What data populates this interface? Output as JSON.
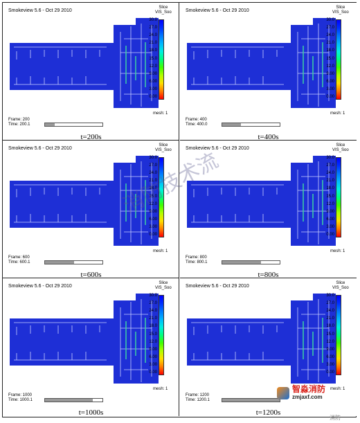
{
  "header_text": "Smokeview 5.6 - Oct 29 2010",
  "legend": {
    "title_line1": "Slice",
    "title_line2": "VIS_Soo",
    "levels": [
      "30.0",
      "27.0",
      "24.0",
      "21.0",
      "18.0",
      "15.0",
      "12.0",
      "9.00",
      "6.00",
      "3.00",
      "0.00"
    ],
    "colors": [
      "#0000ff",
      "#0030ff",
      "#0078ff",
      "#00b8ff",
      "#00f0e0",
      "#00ff80",
      "#40ff00",
      "#b0ff00",
      "#ffe000",
      "#ff8000",
      "#ff0000"
    ]
  },
  "mesh_label": "mesh: 1",
  "panels": [
    {
      "frame": "Frame: 200",
      "time": "Time: 200.1",
      "caption": "t=200s",
      "progress": 0.17
    },
    {
      "frame": "Frame: 400",
      "time": "Time: 400.0",
      "caption": "t=400s",
      "progress": 0.33
    },
    {
      "frame": "Frame: 600",
      "time": "Time: 600.1",
      "caption": "t=600s",
      "progress": 0.5
    },
    {
      "frame": "Frame: 800",
      "time": "Time: 800.1",
      "caption": "t=800s",
      "progress": 0.67
    },
    {
      "frame": "Frame: 1000",
      "time": "Time: 1000.1",
      "caption": "t=1000s",
      "progress": 0.83
    },
    {
      "frame": "Frame: 1200",
      "time": "Time: 1200.1",
      "caption": "t=1200s",
      "progress": 1.0
    }
  ],
  "watermark": "消防技术流",
  "brand": {
    "name": "智淼消防",
    "site": "zmjaxf.com"
  },
  "wechat_text": "消防",
  "plan_color": "#1e2fd6"
}
